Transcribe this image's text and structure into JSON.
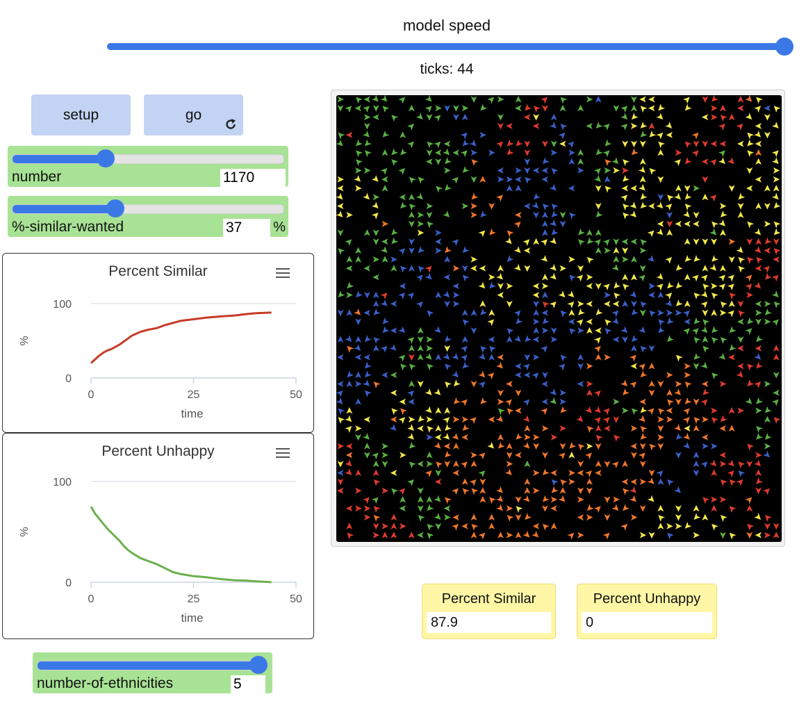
{
  "speed": {
    "label": "model speed",
    "value_fraction": 1.0
  },
  "ticks_label": "ticks: 44",
  "buttons": {
    "setup": "setup",
    "go": "go"
  },
  "sliders": {
    "number": {
      "label": "number",
      "value": "1170",
      "fraction": 0.35
    },
    "similar": {
      "label": "%-similar-wanted",
      "value": "37",
      "unit": "%",
      "fraction": 0.37
    },
    "ethnicities": {
      "label": "number-of-ethnicities",
      "value": "5",
      "fraction": 1.0
    }
  },
  "plots": {
    "similar": {
      "title": "Percent Similar",
      "ylabel": "%",
      "xlabel": "time"
    },
    "unhappy": {
      "title": "Percent Unhappy",
      "ylabel": "%",
      "xlabel": "time"
    }
  },
  "monitors": {
    "similar": {
      "label": "Percent Similar",
      "value": "87.9"
    },
    "unhappy": {
      "label": "Percent Unhappy",
      "value": "0"
    }
  },
  "colors": {
    "accent": "#3a78e6",
    "button": "#c3d3f3",
    "slider": "#a8e295",
    "monitor": "#fff7a6",
    "similar_line": "#c63b26",
    "unhappy_line": "#6ab04c",
    "agents": [
      "#e03b2e",
      "#f0762a",
      "#f2e84a",
      "#5ab043",
      "#3a5fc8"
    ]
  },
  "chart_data": [
    {
      "type": "line",
      "title": "Percent Similar",
      "xlabel": "time",
      "ylabel": "%",
      "xlim": [
        0,
        50
      ],
      "ylim": [
        0,
        100
      ],
      "xticks": [
        "0",
        "25",
        "50"
      ],
      "yticks": [
        "0",
        "100"
      ],
      "series": [
        {
          "x": [
            0,
            1,
            2,
            3,
            4,
            5,
            6,
            7,
            8,
            9,
            10,
            12,
            14,
            16,
            18,
            20,
            22,
            25,
            28,
            30,
            32,
            35,
            38,
            40,
            42,
            44
          ],
          "y": [
            20,
            25,
            30,
            34,
            37,
            39,
            42,
            45,
            49,
            53,
            57,
            62,
            65,
            67,
            71,
            74,
            77,
            79,
            81,
            82,
            83,
            84,
            86,
            87,
            87.5,
            87.9
          ]
        }
      ]
    },
    {
      "type": "line",
      "title": "Percent Unhappy",
      "xlabel": "time",
      "ylabel": "%",
      "xlim": [
        0,
        50
      ],
      "ylim": [
        0,
        100
      ],
      "xticks": [
        "0",
        "25",
        "50"
      ],
      "yticks": [
        "0",
        "100"
      ],
      "series": [
        {
          "x": [
            0,
            1,
            2,
            3,
            4,
            5,
            6,
            7,
            8,
            9,
            10,
            12,
            14,
            16,
            18,
            20,
            22,
            25,
            28,
            30,
            32,
            35,
            38,
            40,
            42,
            44
          ],
          "y": [
            75,
            68,
            63,
            58,
            53,
            49,
            45,
            41,
            36,
            32,
            29,
            24,
            21,
            18,
            14,
            10,
            8,
            6,
            5,
            4,
            3,
            2,
            1.5,
            1,
            0.5,
            0
          ]
        }
      ]
    }
  ]
}
